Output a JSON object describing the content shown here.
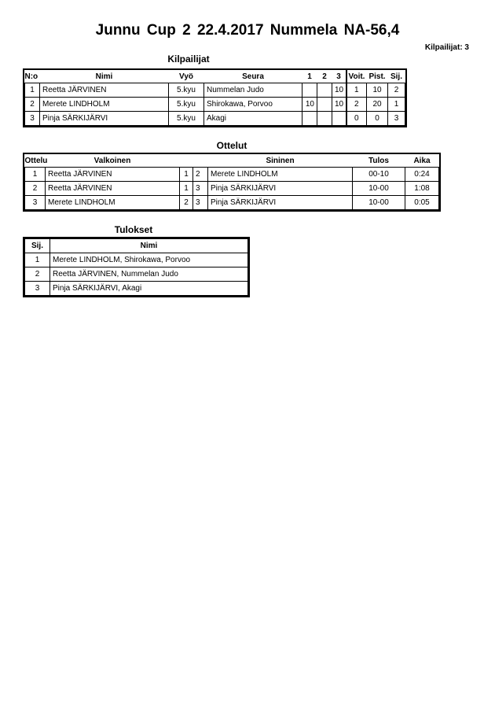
{
  "title": "Junnu Cup 2  22.4.2017  Nummela   NA-56,4",
  "competitor_count": "Kilpailijat: 3",
  "competitors": {
    "heading": "Kilpailijat",
    "headers": [
      "N:o",
      "Nimi",
      "Vyö",
      "Seura",
      "1",
      "2",
      "3",
      "Voit.",
      "Pist.",
      "Sij."
    ],
    "rows": [
      [
        "1",
        "Reetta JÄRVINEN",
        "5.kyu",
        "Nummelan Judo",
        "",
        "",
        "10",
        "1",
        "10",
        "2"
      ],
      [
        "2",
        "Merete LINDHOLM",
        "5.kyu",
        "Shirokawa, Porvoo",
        "10",
        "",
        "10",
        "2",
        "20",
        "1"
      ],
      [
        "3",
        "Pinja SÄRKIJÄRVI",
        "5.kyu",
        "Akagi",
        "",
        "",
        "",
        "0",
        "0",
        "3"
      ]
    ]
  },
  "matches": {
    "heading": "Ottelut",
    "headers": [
      "Ottelu",
      "Valkoinen",
      "",
      "",
      "Sininen",
      "Tulos",
      "Aika"
    ],
    "rows": [
      [
        "1",
        "Reetta JÄRVINEN",
        "1",
        "2",
        "Merete LINDHOLM",
        "00-10",
        "0:24"
      ],
      [
        "2",
        "Reetta JÄRVINEN",
        "1",
        "3",
        "Pinja SÄRKIJÄRVI",
        "10-00",
        "1:08"
      ],
      [
        "3",
        "Merete LINDHOLM",
        "2",
        "3",
        "Pinja SÄRKIJÄRVI",
        "10-00",
        "0:05"
      ]
    ]
  },
  "results": {
    "heading": "Tulokset",
    "headers": [
      "Sij.",
      "Nimi"
    ],
    "rows": [
      [
        "1",
        "Merete LINDHOLM, Shirokawa, Porvoo"
      ],
      [
        "2",
        "Reetta JÄRVINEN, Nummelan Judo"
      ],
      [
        "3",
        "Pinja SÄRKIJÄRVI, Akagi"
      ]
    ]
  }
}
